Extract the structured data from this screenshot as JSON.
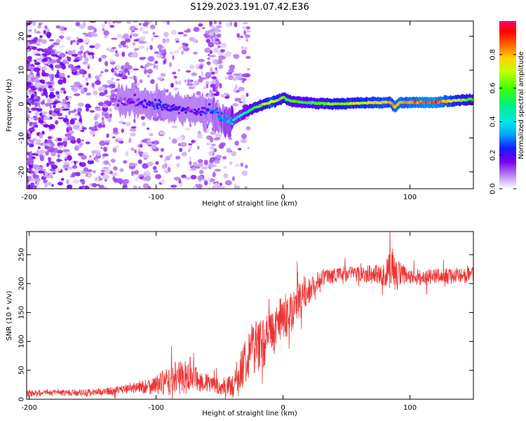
{
  "title": "S129.2023.191.07.42.E36",
  "chart_data": [
    {
      "type": "heatmap",
      "xlabel": "Height of straight line (km)",
      "ylabel": "Frequency (Hz)",
      "xlim": [
        -202,
        150
      ],
      "ylim": [
        -25,
        24.5
      ],
      "x_ticks": [
        -200,
        -100,
        0,
        100
      ],
      "x_tick_labels": [
        "-200",
        "-100",
        "0",
        "100"
      ],
      "y_ticks": [
        -20,
        -10,
        0,
        10,
        20
      ],
      "y_tick_labels": [
        "-20",
        "-10",
        "0",
        "10",
        "20"
      ],
      "colorbar": {
        "label": "Normalized spectral amplitude",
        "range": [
          0,
          1
        ],
        "ticks": [
          0.0,
          0.2,
          0.4,
          0.6,
          0.8
        ],
        "tick_labels": [
          "0.0",
          "0.2",
          "0.4",
          "0.6",
          "0.8"
        ]
      },
      "ridge": {
        "description_points": [
          [
            -130,
            1
          ],
          [
            -110,
            0.5
          ],
          [
            -90,
            -1
          ],
          [
            -70,
            -2
          ],
          [
            -55,
            -2
          ],
          [
            -48,
            -4.5
          ],
          [
            -40,
            -5
          ],
          [
            -32,
            -3
          ],
          [
            -25,
            -1.5
          ],
          [
            -15,
            0
          ],
          [
            -5,
            1
          ],
          [
            0,
            2
          ],
          [
            5,
            1
          ],
          [
            15,
            0.5
          ],
          [
            40,
            0
          ],
          [
            60,
            0.3
          ],
          [
            85,
            0.5
          ],
          [
            88,
            -1
          ],
          [
            92,
            0.5
          ],
          [
            120,
            0.5
          ],
          [
            140,
            1.2
          ],
          [
            150,
            1.4
          ]
        ],
        "amplitude_points": [
          [
            -130,
            0.12
          ],
          [
            -100,
            0.22
          ],
          [
            -70,
            0.15
          ],
          [
            -50,
            0.3
          ],
          [
            -30,
            0.45
          ],
          [
            -10,
            0.75
          ],
          [
            0,
            0.6
          ],
          [
            20,
            0.55
          ],
          [
            60,
            0.7
          ],
          [
            90,
            0.8
          ],
          [
            120,
            0.9
          ],
          [
            150,
            0.55
          ]
        ]
      }
    },
    {
      "type": "line",
      "series_name": "SNR",
      "color": "#ee3333",
      "xlabel": "Height of straight line (km)",
      "ylabel": "SNR (10 * v/v)",
      "xlim": [
        -202,
        150
      ],
      "ylim": [
        0,
        290
      ],
      "x_ticks": [
        -200,
        -100,
        0,
        100
      ],
      "x_tick_labels": [
        "-200",
        "-100",
        "0",
        "100"
      ],
      "y_ticks": [
        0,
        50,
        100,
        150,
        200,
        250
      ],
      "y_tick_labels": [
        "0",
        "50",
        "100",
        "150",
        "200",
        "250"
      ],
      "trend_x": [
        -202,
        -150,
        -130,
        -120,
        -110,
        -100,
        -90,
        -80,
        -70,
        -60,
        -50,
        -40,
        -35,
        -30,
        -25,
        -20,
        -15,
        -10,
        -5,
        0,
        5,
        10,
        15,
        20,
        25,
        30,
        40,
        60,
        80,
        85,
        90,
        100,
        120,
        150
      ],
      "trend_y": [
        10,
        12,
        15,
        20,
        22,
        25,
        30,
        40,
        35,
        28,
        22,
        22,
        35,
        70,
        90,
        95,
        100,
        110,
        125,
        140,
        150,
        160,
        175,
        185,
        200,
        210,
        215,
        218,
        215,
        230,
        215,
        210,
        212,
        215
      ],
      "noise_amplitude": [
        4,
        4,
        5,
        7,
        9,
        12,
        18,
        22,
        16,
        12,
        10,
        14,
        22,
        30,
        34,
        34,
        32,
        30,
        30,
        28,
        28,
        26,
        22,
        16,
        12,
        10,
        10,
        10,
        14,
        28,
        20,
        10,
        10,
        10
      ]
    }
  ]
}
